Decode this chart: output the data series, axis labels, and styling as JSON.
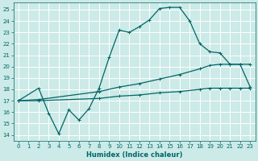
{
  "xlabel": "Humidex (Indice chaleur)",
  "bg_color": "#cceae7",
  "grid_color": "#ffffff",
  "line_color": "#006666",
  "xlim": [
    -0.5,
    23.5
  ],
  "ylim": [
    13.5,
    25.6
  ],
  "yticks": [
    14,
    15,
    16,
    17,
    18,
    19,
    20,
    21,
    22,
    23,
    24,
    25
  ],
  "xticks": [
    0,
    1,
    2,
    3,
    4,
    5,
    6,
    7,
    8,
    9,
    10,
    11,
    12,
    13,
    14,
    15,
    16,
    17,
    18,
    19,
    20,
    21,
    22,
    23
  ],
  "line1_x": [
    0,
    2,
    3,
    4,
    5,
    6,
    7,
    8,
    9,
    10,
    11,
    12,
    13,
    14,
    15,
    16,
    17,
    18,
    19,
    20,
    21,
    22,
    23
  ],
  "line1_y": [
    17,
    18.1,
    15.9,
    14.1,
    16.2,
    15.3,
    16.3,
    18.1,
    20.8,
    23.2,
    23.0,
    23.5,
    24.1,
    25.1,
    25.2,
    25.2,
    24.0,
    22.0,
    21.3,
    21.2,
    20.2,
    20.2,
    18.2
  ],
  "line2_x": [
    0,
    2,
    8,
    10,
    12,
    14,
    16,
    18,
    19,
    20,
    21,
    22,
    23
  ],
  "line2_y": [
    17.0,
    17.1,
    17.8,
    18.2,
    18.5,
    18.9,
    19.3,
    19.8,
    20.1,
    20.2,
    20.2,
    20.2,
    20.2
  ],
  "line3_x": [
    0,
    2,
    8,
    10,
    12,
    14,
    16,
    18,
    19,
    20,
    21,
    22,
    23
  ],
  "line3_y": [
    17.0,
    17.0,
    17.2,
    17.4,
    17.5,
    17.7,
    17.8,
    18.0,
    18.1,
    18.1,
    18.1,
    18.1,
    18.1
  ]
}
